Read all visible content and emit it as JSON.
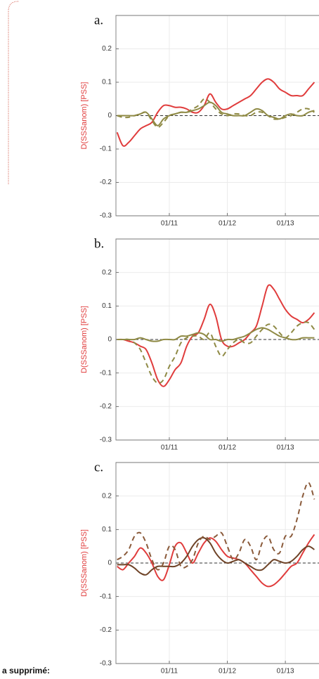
{
  "chart_data": [
    {
      "type": "line",
      "title": "a.",
      "ylabel": "D(SSSanom) [PSS]",
      "x": [
        2010.1,
        2010.2,
        2010.3,
        2010.4,
        2010.5,
        2010.6,
        2010.7,
        2010.8,
        2010.9,
        2011.0,
        2011.1,
        2011.2,
        2011.3,
        2011.4,
        2011.5,
        2011.6,
        2011.7,
        2011.8,
        2011.9,
        2012.0,
        2012.1,
        2012.2,
        2012.3,
        2012.4,
        2012.5,
        2012.6,
        2012.7,
        2012.8,
        2012.9,
        2013.0,
        2013.1,
        2013.2,
        2013.3,
        2013.4,
        2013.5
      ],
      "xlim": [
        2010.08,
        2013.58
      ],
      "xticks": [
        {
          "value": 2011,
          "label": "01/11"
        },
        {
          "value": 2012,
          "label": "01/12"
        },
        {
          "value": 2013,
          "label": "01/13"
        }
      ],
      "ylim": [
        -0.3,
        0.3
      ],
      "yticks": [
        -0.3,
        -0.2,
        -0.1,
        0,
        0.1,
        0.2
      ],
      "grid": true,
      "hline": 0,
      "series": [
        {
          "color": "#e03c3c",
          "style": "solid",
          "values": [
            -0.05,
            -0.09,
            -0.08,
            -0.06,
            -0.04,
            -0.03,
            -0.02,
            0.01,
            0.03,
            0.03,
            0.025,
            0.025,
            0.02,
            0.01,
            0.01,
            0.03,
            0.065,
            0.04,
            0.02,
            0.02,
            0.03,
            0.04,
            0.05,
            0.06,
            0.08,
            0.1,
            0.11,
            0.1,
            0.08,
            0.07,
            0.06,
            0.06,
            0.06,
            0.08,
            0.1
          ]
        },
        {
          "color": "#8f8a45",
          "style": "solid",
          "values": [
            0,
            0,
            0,
            0,
            0.005,
            0.01,
            -0.01,
            -0.03,
            -0.01,
            0,
            0.005,
            0.01,
            0.01,
            0.015,
            0.02,
            0.03,
            0.04,
            0.03,
            0.01,
            0.005,
            0,
            0,
            0,
            0.01,
            0.02,
            0.015,
            0,
            -0.005,
            -0.01,
            0,
            0.005,
            0,
            0,
            0.01,
            0.015
          ]
        },
        {
          "color": "#8f8a45",
          "style": "dashed",
          "values": [
            0,
            -0.005,
            -0.005,
            0,
            0.005,
            0.01,
            -0.015,
            -0.035,
            -0.02,
            0,
            0.005,
            0.01,
            0.01,
            0.02,
            0.03,
            0.05,
            0.04,
            0.02,
            0.005,
            0,
            0.005,
            0.005,
            0,
            0,
            0.01,
            0.01,
            0,
            -0.01,
            -0.01,
            -0.005,
            0,
            0.01,
            0.02,
            0.02,
            0.01
          ]
        }
      ]
    },
    {
      "type": "line",
      "title": "b.",
      "ylabel": "D(SSSanom) [PSS]",
      "x": [
        2010.1,
        2010.2,
        2010.3,
        2010.4,
        2010.5,
        2010.6,
        2010.7,
        2010.8,
        2010.9,
        2011.0,
        2011.1,
        2011.2,
        2011.3,
        2011.4,
        2011.5,
        2011.6,
        2011.7,
        2011.8,
        2011.9,
        2012.0,
        2012.1,
        2012.2,
        2012.3,
        2012.4,
        2012.5,
        2012.6,
        2012.7,
        2012.8,
        2012.9,
        2013.0,
        2013.1,
        2013.2,
        2013.3,
        2013.4,
        2013.5
      ],
      "xlim": [
        2010.08,
        2013.58
      ],
      "xticks": [
        {
          "value": 2011,
          "label": "01/11"
        },
        {
          "value": 2012,
          "label": "01/12"
        },
        {
          "value": 2013,
          "label": "01/13"
        }
      ],
      "ylim": [
        -0.3,
        0.3
      ],
      "yticks": [
        -0.3,
        -0.2,
        -0.1,
        0,
        0.1,
        0.2
      ],
      "grid": true,
      "hline": 0,
      "series": [
        {
          "color": "#e03c3c",
          "style": "solid",
          "values": [
            0,
            0,
            -0.005,
            -0.01,
            -0.02,
            -0.03,
            -0.07,
            -0.12,
            -0.14,
            -0.12,
            -0.09,
            -0.07,
            -0.02,
            0.01,
            0.02,
            0.06,
            0.105,
            0.07,
            0,
            -0.02,
            -0.02,
            -0.01,
            0,
            0.02,
            0.04,
            0.1,
            0.16,
            0.15,
            0.12,
            0.09,
            0.07,
            0.06,
            0.05,
            0.06,
            0.08
          ]
        },
        {
          "color": "#8f8a45",
          "style": "solid",
          "values": [
            0,
            0,
            0,
            0,
            0.005,
            0,
            -0.005,
            -0.005,
            0,
            0,
            0,
            0.01,
            0.01,
            0.015,
            0.02,
            0.015,
            0,
            0,
            -0.005,
            0,
            0,
            0.005,
            0.01,
            0.02,
            0.03,
            0.035,
            0.03,
            0.02,
            0.01,
            0.005,
            0,
            0,
            0.005,
            0.005,
            0.005
          ]
        },
        {
          "color": "#8f8a45",
          "style": "dashed",
          "values": [
            0,
            0,
            0,
            -0.01,
            -0.03,
            -0.07,
            -0.11,
            -0.13,
            -0.12,
            -0.08,
            -0.05,
            -0.01,
            0.005,
            0.01,
            0.01,
            0,
            0.02,
            -0.02,
            -0.05,
            -0.03,
            -0.01,
            0,
            -0.01,
            -0.01,
            0.01,
            0.03,
            0.045,
            0.04,
            0.02,
            0.005,
            0.02,
            0.04,
            0.05,
            0.05,
            0.03
          ]
        }
      ]
    },
    {
      "type": "line",
      "title": "c.",
      "ylabel": "D(SSSanom) [PSS]",
      "x": [
        2010.1,
        2010.2,
        2010.3,
        2010.4,
        2010.5,
        2010.6,
        2010.7,
        2010.8,
        2010.9,
        2011.0,
        2011.1,
        2011.2,
        2011.3,
        2011.4,
        2011.5,
        2011.6,
        2011.7,
        2011.8,
        2011.9,
        2012.0,
        2012.1,
        2012.2,
        2012.3,
        2012.4,
        2012.5,
        2012.6,
        2012.7,
        2012.8,
        2012.9,
        2013.0,
        2013.1,
        2013.2,
        2013.3,
        2013.4,
        2013.5
      ],
      "xlim": [
        2010.08,
        2013.58
      ],
      "xticks": [
        {
          "value": 2011,
          "label": "01/11"
        },
        {
          "value": 2012,
          "label": "01/12"
        },
        {
          "value": 2013,
          "label": "01/13"
        }
      ],
      "ylim": [
        -0.3,
        0.3
      ],
      "yticks": [
        -0.3,
        -0.2,
        -0.1,
        0,
        0.1,
        0.2
      ],
      "grid": true,
      "hline": 0,
      "series": [
        {
          "color": "#e03c3c",
          "style": "solid",
          "values": [
            -0.01,
            -0.02,
            0,
            0.02,
            0.045,
            0.03,
            0,
            -0.04,
            -0.05,
            -0.005,
            0.05,
            0.06,
            0.03,
            0,
            0.03,
            0.06,
            0.075,
            0.065,
            0.04,
            0.02,
            0.015,
            0.01,
            0,
            -0.02,
            -0.04,
            -0.06,
            -0.07,
            -0.065,
            -0.05,
            -0.03,
            -0.01,
            0,
            0.03,
            0.06,
            0.085
          ]
        },
        {
          "color": "#6e4327",
          "style": "solid",
          "values": [
            -0.005,
            -0.005,
            -0.005,
            -0.015,
            -0.03,
            -0.035,
            -0.02,
            -0.01,
            -0.01,
            -0.01,
            -0.01,
            0,
            0.02,
            0.05,
            0.07,
            0.075,
            0.06,
            0.03,
            0.01,
            0,
            0.005,
            0.01,
            0,
            -0.01,
            -0.02,
            -0.02,
            -0.005,
            0.01,
            0.005,
            0,
            0.005,
            0.02,
            0.04,
            0.05,
            0.04
          ]
        },
        {
          "color": "#8a5a3a",
          "style": "dashed",
          "values": [
            0.01,
            0.02,
            0.04,
            0.08,
            0.09,
            0.06,
            0.01,
            -0.02,
            0,
            0.05,
            0.04,
            -0.01,
            -0.01,
            0.01,
            0.06,
            0.08,
            0.07,
            0.08,
            0.09,
            0.05,
            0.01,
            0.03,
            0.07,
            0.05,
            0.01,
            0.06,
            0.08,
            0.04,
            0.03,
            0.08,
            0.08,
            0.13,
            0.2,
            0.24,
            0.19
          ]
        }
      ]
    }
  ],
  "comment": {
    "label": "a supprimé:"
  }
}
